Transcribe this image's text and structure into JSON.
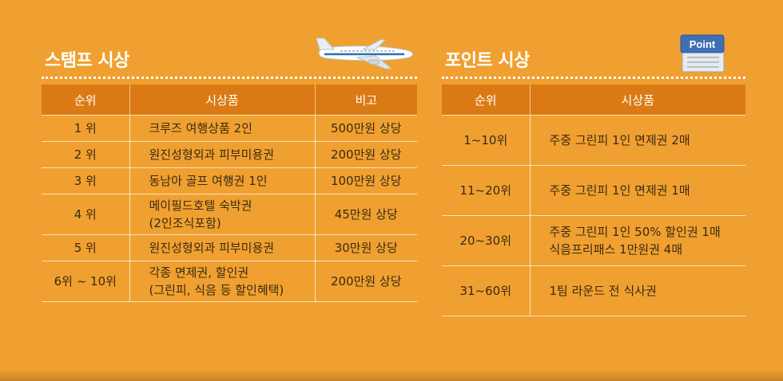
{
  "left": {
    "title": "스탬프 시상",
    "headers": [
      "순위",
      "시상품",
      "비고"
    ],
    "rows": [
      {
        "rank": "1 위",
        "prize": "크루즈 여행상품 2인",
        "note": "500만원 상당"
      },
      {
        "rank": "2 위",
        "prize": "원진성형외과 피부미용권",
        "note": "200만원 상당"
      },
      {
        "rank": "3 위",
        "prize": "동남아 골프 여행권 1인",
        "note": "100만원 상당"
      },
      {
        "rank": "4 위",
        "prize": "메이필드호텔 숙박권\n(2인조식포함)",
        "note": "45만원 상당"
      },
      {
        "rank": "5 위",
        "prize": "원진성형외과 피부미용권",
        "note": "30만원 상당"
      },
      {
        "rank": "6위 ~ 10위",
        "prize": "각종 면제권, 할인권\n(그린피, 식음 등 할인혜택)",
        "note": "200만원 상당"
      }
    ],
    "icon": "airplane-icon"
  },
  "right": {
    "title": "포인트 시상",
    "headers": [
      "순위",
      "시상품"
    ],
    "rows": [
      {
        "rank": "1~10위",
        "prize": "주중 그린피 1인 면제권 2매"
      },
      {
        "rank": "11~20위",
        "prize": "주중 그린피 1인 면제권 1매"
      },
      {
        "rank": "20~30위",
        "prize": "주중 그린피 1인 50% 할인권 1매\n식음프리패스 1만원권 4매"
      },
      {
        "rank": "31~60위",
        "prize": "1팀 라운드 전 식사권"
      }
    ],
    "icon": "point-card-icon",
    "icon_label": "Point"
  },
  "colors": {
    "background": "#f0a030",
    "header": "#db7a14",
    "text": "#3a2a12"
  }
}
